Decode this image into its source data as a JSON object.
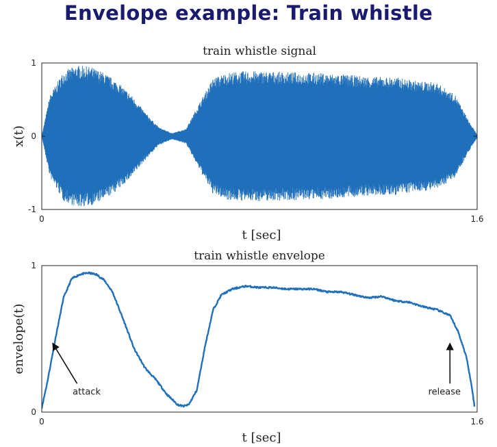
{
  "page": {
    "title": "Envelope example: Train whistle"
  },
  "colors": {
    "series": "#1f6fba",
    "axis": "#222222",
    "title": "#1a1a6e"
  },
  "chart_data": [
    {
      "type": "line",
      "title": "train whistle signal",
      "xlabel": "t [sec]",
      "ylabel": "x(t)",
      "xlim": [
        0,
        1.6
      ],
      "ylim": [
        -1,
        1
      ],
      "x_ticks": [
        0,
        1.6
      ],
      "x_tick_labels": [
        "0",
        "1.6"
      ],
      "y_ticks": [
        -1,
        0,
        1
      ],
      "y_tick_labels": [
        "-1",
        "0",
        "1"
      ],
      "grid": false,
      "series": [
        {
          "style": "oscillating waveform bounded by envelope",
          "amplitude_envelope": {
            "t": [
              0,
              0.03,
              0.08,
              0.13,
              0.18,
              0.23,
              0.28,
              0.33,
              0.38,
              0.43,
              0.48,
              0.53,
              0.58,
              0.63,
              0.68,
              0.73,
              0.8,
              0.9,
              1.0,
              1.1,
              1.2,
              1.3,
              1.38,
              1.45,
              1.52,
              1.57,
              1.6
            ],
            "amp": [
              0,
              0.55,
              0.87,
              0.95,
              0.93,
              0.85,
              0.72,
              0.55,
              0.32,
              0.12,
              0.04,
              0.1,
              0.45,
              0.78,
              0.85,
              0.87,
              0.87,
              0.86,
              0.85,
              0.83,
              0.8,
              0.79,
              0.74,
              0.72,
              0.55,
              0.2,
              0.02
            ]
          }
        }
      ]
    },
    {
      "type": "line",
      "title": "train whistle envelope",
      "xlabel": "t [sec]",
      "ylabel": "envelope(t)",
      "xlim": [
        0,
        1.6
      ],
      "ylim": [
        0,
        1
      ],
      "x_ticks": [
        0,
        1.6
      ],
      "x_tick_labels": [
        "0",
        "1.6"
      ],
      "y_ticks": [
        0,
        1
      ],
      "y_tick_labels": [
        "0",
        "1"
      ],
      "grid": false,
      "series": [
        {
          "x": [
            0,
            0.02,
            0.05,
            0.08,
            0.11,
            0.14,
            0.17,
            0.2,
            0.23,
            0.26,
            0.3,
            0.34,
            0.38,
            0.42,
            0.46,
            0.5,
            0.52,
            0.54,
            0.57,
            0.6,
            0.63,
            0.66,
            0.7,
            0.75,
            0.8,
            0.85,
            0.9,
            0.95,
            1.0,
            1.05,
            1.1,
            1.15,
            1.2,
            1.25,
            1.3,
            1.35,
            1.4,
            1.45,
            1.5,
            1.53,
            1.56,
            1.58,
            1.59
          ],
          "y": [
            0.03,
            0.2,
            0.5,
            0.78,
            0.91,
            0.94,
            0.95,
            0.94,
            0.9,
            0.82,
            0.63,
            0.43,
            0.3,
            0.22,
            0.12,
            0.05,
            0.04,
            0.05,
            0.15,
            0.45,
            0.7,
            0.8,
            0.84,
            0.86,
            0.85,
            0.85,
            0.84,
            0.84,
            0.84,
            0.82,
            0.82,
            0.8,
            0.78,
            0.79,
            0.76,
            0.75,
            0.72,
            0.7,
            0.66,
            0.55,
            0.38,
            0.18,
            0.04
          ]
        }
      ],
      "annotations": [
        {
          "text": "attack",
          "x": 0.165,
          "y": 0.12,
          "arrow_to": [
            0.04,
            0.47
          ]
        },
        {
          "text": "release",
          "x": 1.48,
          "y": 0.12,
          "arrow_to": [
            1.5,
            0.47
          ]
        }
      ]
    }
  ]
}
